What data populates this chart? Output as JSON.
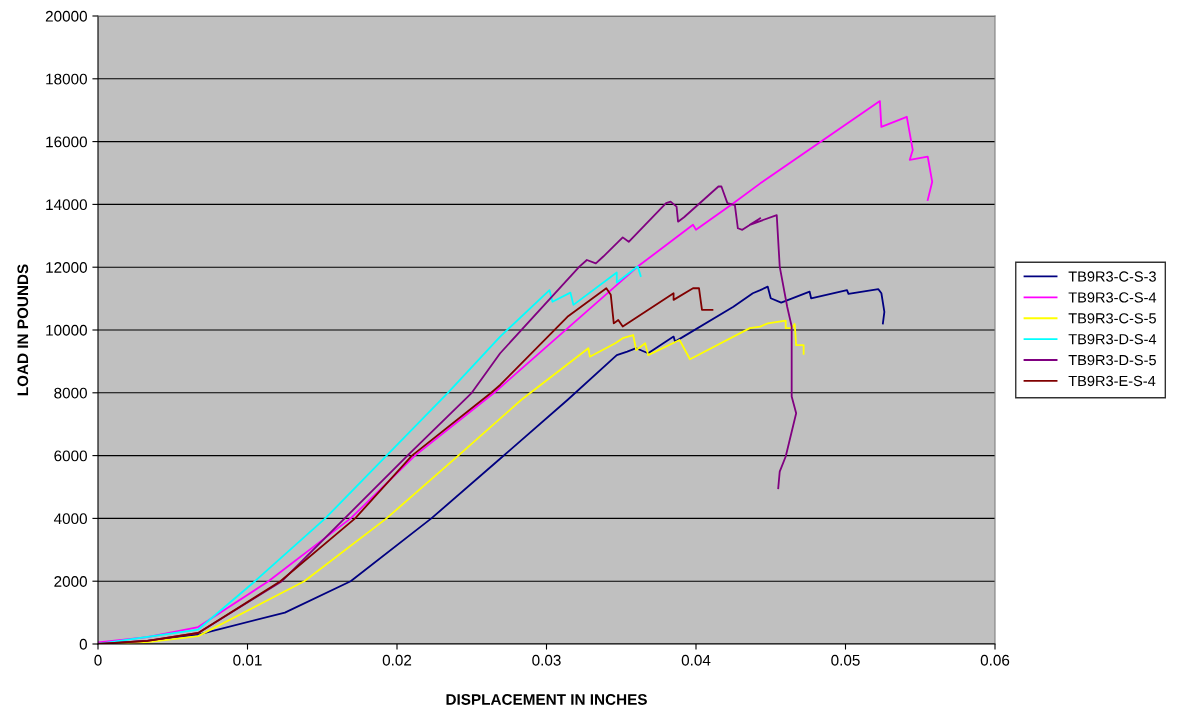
{
  "chart_data": {
    "type": "line",
    "xlabel": "DISPLACEMENT IN INCHES",
    "ylabel": "LOAD IN POUNDS",
    "xlim": [
      0,
      0.06
    ],
    "xticks": [
      0,
      0.01,
      0.02,
      0.03,
      0.04,
      0.05,
      0.06
    ],
    "ylim": [
      0,
      20000
    ],
    "yticks": [
      0,
      2000,
      4000,
      6000,
      8000,
      10000,
      12000,
      14000,
      16000,
      18000,
      20000
    ],
    "grid": "y",
    "legend": "right",
    "marker": "none",
    "line_style": "solid",
    "series": [
      {
        "name": "TB9R3-C-S-3",
        "color": "#000080",
        "x": [
          0,
          0.0033,
          0.0067,
          0.0125,
          0.0169,
          0.0223,
          0.0268,
          0.0314,
          0.0347,
          0.0354,
          0.036,
          0.0368,
          0.0385,
          0.0386,
          0.0425,
          0.0438,
          0.0443,
          0.0448,
          0.045,
          0.0457,
          0.0476,
          0.0477,
          0.0501,
          0.0502,
          0.0522,
          0.0524,
          0.0526,
          0.0525
        ],
        "values": [
          0,
          100,
          300,
          1000,
          2000,
          4000,
          5860,
          7770,
          9200,
          9310,
          9420,
          9260,
          9790,
          9630,
          10740,
          11170,
          11270,
          11380,
          11010,
          10870,
          11220,
          11010,
          11270,
          11150,
          11300,
          11170,
          10580,
          10210
        ]
      },
      {
        "name": "TB9R3-C-S-4",
        "color": "#ff00ff",
        "x": [
          0,
          0.0033,
          0.0067,
          0.0114,
          0.0169,
          0.0212,
          0.0265,
          0.0361,
          0.0398,
          0.04,
          0.0425,
          0.0443,
          0.0523,
          0.0524,
          0.0541,
          0.0545,
          0.0543,
          0.0555,
          0.0558,
          0.0555
        ],
        "values": [
          50,
          220,
          540,
          2000,
          4000,
          6000,
          8000,
          12020,
          13350,
          13190,
          14040,
          14670,
          17290,
          16470,
          16790,
          15730,
          15420,
          15520,
          14720,
          14140
        ]
      },
      {
        "name": "TB9R3-C-S-5",
        "color": "#ffff00",
        "x": [
          0,
          0.0033,
          0.0067,
          0.0138,
          0.0193,
          0.0241,
          0.0283,
          0.0328,
          0.0329,
          0.0346,
          0.0351,
          0.0358,
          0.036,
          0.0366,
          0.0368,
          0.0389,
          0.0396,
          0.0436,
          0.0443,
          0.0448,
          0.046,
          0.046,
          0.0464,
          0.0466,
          0.0467,
          0.0472,
          0.0472
        ],
        "values": [
          0,
          60,
          250,
          2000,
          4000,
          6000,
          7770,
          9420,
          9150,
          9580,
          9740,
          9840,
          9360,
          9580,
          9200,
          9680,
          9070,
          10060,
          10110,
          10210,
          10300,
          10060,
          10060,
          10190,
          9520,
          9520,
          9240
        ]
      },
      {
        "name": "TB9R3-D-S-4",
        "color": "#00ffff",
        "x": [
          0,
          0.0067,
          0.0105,
          0.0152,
          0.0193,
          0.0234,
          0.0269,
          0.0302,
          0.0304,
          0.0316,
          0.0318,
          0.0347,
          0.0347,
          0.0361,
          0.0363
        ],
        "values": [
          0,
          460,
          2000,
          4000,
          6000,
          8000,
          9790,
          11270,
          10900,
          11190,
          10800,
          11830,
          11510,
          12020,
          11720
        ]
      },
      {
        "name": "TB9R3-D-S-5",
        "color": "#800080",
        "x": [
          0,
          0.0033,
          0.0067,
          0.0123,
          0.0165,
          0.0207,
          0.025,
          0.0269,
          0.0322,
          0.0327,
          0.0333,
          0.0338,
          0.0351,
          0.0355,
          0.038,
          0.0383,
          0.0387,
          0.0388,
          0.0392,
          0.0415,
          0.0417,
          0.0421,
          0.0426,
          0.0428,
          0.0431,
          0.0443,
          0.0436,
          0.0454,
          0.0456,
          0.0461,
          0.0464,
          0.0464,
          0.0467,
          0.046,
          0.0456,
          0.0455
        ],
        "values": [
          0,
          100,
          350,
          2000,
          4000,
          6000,
          8000,
          9260,
          12020,
          12230,
          12120,
          12340,
          12950,
          12810,
          14040,
          14090,
          13930,
          13450,
          13590,
          14570,
          14570,
          14040,
          13980,
          13240,
          13190,
          13560,
          13350,
          13660,
          12020,
          10740,
          10110,
          7880,
          7350,
          5970,
          5490,
          4960
        ]
      },
      {
        "name": "TB9R3-E-S-4",
        "color": "#800000",
        "x": [
          0,
          0.0033,
          0.0067,
          0.0122,
          0.0172,
          0.021,
          0.0263,
          0.0269,
          0.0314,
          0.034,
          0.0343,
          0.0345,
          0.0348,
          0.0351,
          0.0385,
          0.0385,
          0.0398,
          0.0402,
          0.0404,
          0.0411
        ],
        "values": [
          0,
          100,
          350,
          2000,
          4000,
          6000,
          8000,
          8250,
          10420,
          11330,
          11120,
          10210,
          10320,
          10110,
          11170,
          10960,
          11330,
          11330,
          10640,
          10640
        ]
      }
    ]
  }
}
